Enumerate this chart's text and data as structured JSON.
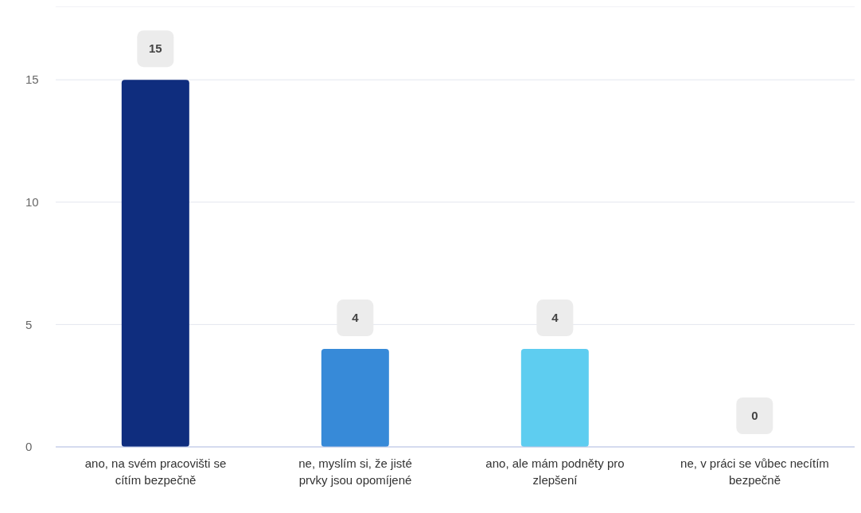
{
  "chart_data": {
    "type": "bar",
    "categories": [
      "ano, na svém pracovišti se cítím bezpečně",
      "ne, myslím si, že jisté prvky jsou opomíjené",
      "ano, ale mám podněty pro zlepšení",
      "ne, v práci se vůbec necítím bezpečně"
    ],
    "values": [
      15,
      4,
      4,
      0
    ],
    "colors": [
      "#0f2d7e",
      "#378ad8",
      "#5ecdf0",
      null
    ],
    "ylim": [
      0,
      18
    ],
    "yticks": [
      0,
      5,
      10,
      15
    ],
    "grid": "y",
    "data_labels": true,
    "legend": false
  }
}
